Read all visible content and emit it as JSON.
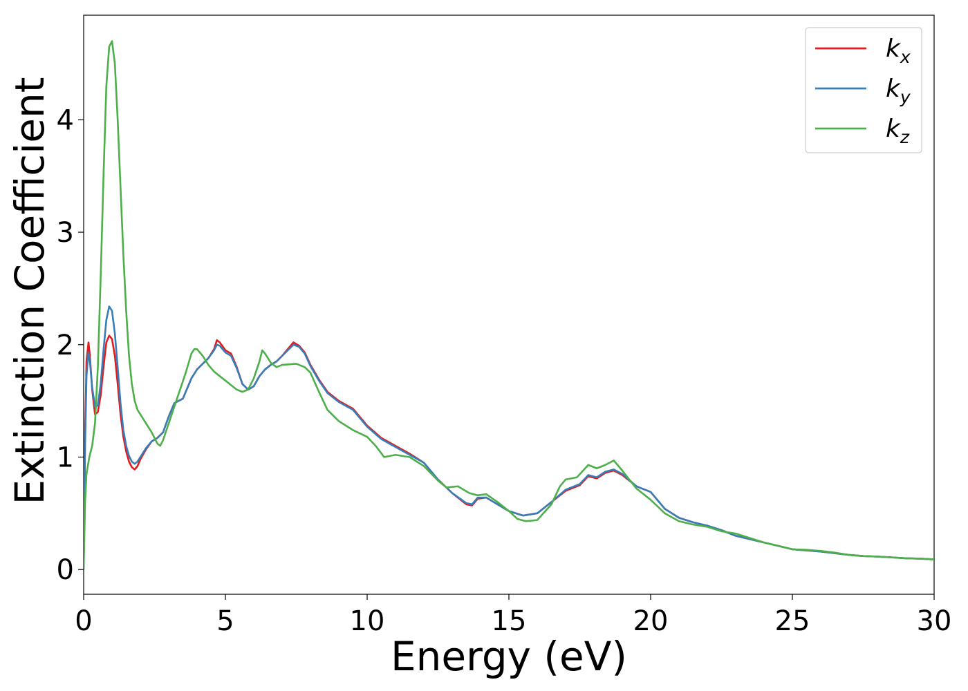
{
  "chart_data": {
    "type": "line",
    "title": "",
    "xlabel": "Energy (eV)",
    "ylabel": "Extinction Coefficient",
    "xlim": [
      0,
      30
    ],
    "ylim": [
      -0.22,
      4.93
    ],
    "xticks": [
      0,
      5,
      10,
      15,
      20,
      25,
      30
    ],
    "yticks": [
      0,
      1,
      2,
      3,
      4
    ],
    "xtick_labels": [
      "0",
      "5",
      "10",
      "15",
      "20",
      "25",
      "30"
    ],
    "ytick_labels": [
      "0",
      "1",
      "2",
      "3",
      "4"
    ],
    "grid": false,
    "legend_position": "top-right",
    "series": [
      {
        "name": "k_x",
        "legend_base": "k",
        "legend_sub": "x",
        "color": "#e41a1c",
        "points": [
          [
            0,
            0
          ],
          [
            0.05,
            1.2
          ],
          [
            0.1,
            1.85
          ],
          [
            0.17,
            2.02
          ],
          [
            0.22,
            1.9
          ],
          [
            0.3,
            1.6
          ],
          [
            0.4,
            1.38
          ],
          [
            0.5,
            1.4
          ],
          [
            0.6,
            1.55
          ],
          [
            0.7,
            1.8
          ],
          [
            0.8,
            2.02
          ],
          [
            0.9,
            2.08
          ],
          [
            1.0,
            2.05
          ],
          [
            1.1,
            1.9
          ],
          [
            1.2,
            1.65
          ],
          [
            1.3,
            1.38
          ],
          [
            1.4,
            1.18
          ],
          [
            1.5,
            1.05
          ],
          [
            1.6,
            0.96
          ],
          [
            1.7,
            0.91
          ],
          [
            1.8,
            0.89
          ],
          [
            1.9,
            0.92
          ],
          [
            2.0,
            0.98
          ],
          [
            2.2,
            1.07
          ],
          [
            2.4,
            1.14
          ],
          [
            2.6,
            1.17
          ],
          [
            2.8,
            1.22
          ],
          [
            3.0,
            1.36
          ],
          [
            3.2,
            1.48
          ],
          [
            3.5,
            1.52
          ],
          [
            3.8,
            1.7
          ],
          [
            4.0,
            1.78
          ],
          [
            4.2,
            1.83
          ],
          [
            4.4,
            1.88
          ],
          [
            4.6,
            1.96
          ],
          [
            4.7,
            2.04
          ],
          [
            4.8,
            2.02
          ],
          [
            5.0,
            1.95
          ],
          [
            5.2,
            1.92
          ],
          [
            5.4,
            1.8
          ],
          [
            5.6,
            1.65
          ],
          [
            5.8,
            1.6
          ],
          [
            6.0,
            1.63
          ],
          [
            6.2,
            1.72
          ],
          [
            6.4,
            1.78
          ],
          [
            6.6,
            1.82
          ],
          [
            6.8,
            1.85
          ],
          [
            7.0,
            1.9
          ],
          [
            7.2,
            1.96
          ],
          [
            7.4,
            2.02
          ],
          [
            7.6,
            1.99
          ],
          [
            7.8,
            1.93
          ],
          [
            8.0,
            1.82
          ],
          [
            8.3,
            1.69
          ],
          [
            8.6,
            1.58
          ],
          [
            9.0,
            1.5
          ],
          [
            9.5,
            1.43
          ],
          [
            10.0,
            1.28
          ],
          [
            10.5,
            1.17
          ],
          [
            11.0,
            1.1
          ],
          [
            11.5,
            1.03
          ],
          [
            12.0,
            0.95
          ],
          [
            12.5,
            0.8
          ],
          [
            13.0,
            0.68
          ],
          [
            13.5,
            0.58
          ],
          [
            13.7,
            0.57
          ],
          [
            13.9,
            0.63
          ],
          [
            14.2,
            0.64
          ],
          [
            14.6,
            0.58
          ],
          [
            15.0,
            0.52
          ],
          [
            15.5,
            0.48
          ],
          [
            16.0,
            0.5
          ],
          [
            16.5,
            0.6
          ],
          [
            17.0,
            0.7
          ],
          [
            17.5,
            0.75
          ],
          [
            17.8,
            0.83
          ],
          [
            18.1,
            0.81
          ],
          [
            18.4,
            0.86
          ],
          [
            18.7,
            0.88
          ],
          [
            19.0,
            0.84
          ],
          [
            19.5,
            0.74
          ],
          [
            20.0,
            0.69
          ],
          [
            20.5,
            0.54
          ],
          [
            21.0,
            0.46
          ],
          [
            21.5,
            0.42
          ],
          [
            22.0,
            0.39
          ],
          [
            22.5,
            0.35
          ],
          [
            23.0,
            0.3
          ],
          [
            23.5,
            0.27
          ],
          [
            24.0,
            0.24
          ],
          [
            24.5,
            0.21
          ],
          [
            25.0,
            0.18
          ],
          [
            25.5,
            0.17
          ],
          [
            26.0,
            0.16
          ],
          [
            26.5,
            0.145
          ],
          [
            27.0,
            0.13
          ],
          [
            27.5,
            0.12
          ],
          [
            28.0,
            0.115
          ],
          [
            28.5,
            0.108
          ],
          [
            29.0,
            0.1
          ],
          [
            29.5,
            0.097
          ],
          [
            30.0,
            0.09
          ]
        ]
      },
      {
        "name": "k_y",
        "legend_base": "k",
        "legend_sub": "y",
        "color": "#377eb8",
        "points": [
          [
            0,
            0
          ],
          [
            0.05,
            1.1
          ],
          [
            0.1,
            1.72
          ],
          [
            0.17,
            1.93
          ],
          [
            0.22,
            1.85
          ],
          [
            0.3,
            1.62
          ],
          [
            0.4,
            1.45
          ],
          [
            0.5,
            1.46
          ],
          [
            0.6,
            1.65
          ],
          [
            0.7,
            1.95
          ],
          [
            0.8,
            2.22
          ],
          [
            0.9,
            2.34
          ],
          [
            1.0,
            2.3
          ],
          [
            1.1,
            2.1
          ],
          [
            1.2,
            1.8
          ],
          [
            1.3,
            1.48
          ],
          [
            1.4,
            1.24
          ],
          [
            1.5,
            1.1
          ],
          [
            1.6,
            1.01
          ],
          [
            1.7,
            0.96
          ],
          [
            1.8,
            0.94
          ],
          [
            1.9,
            0.96
          ],
          [
            2.0,
            1.0
          ],
          [
            2.2,
            1.08
          ],
          [
            2.4,
            1.14
          ],
          [
            2.6,
            1.17
          ],
          [
            2.8,
            1.22
          ],
          [
            3.0,
            1.36
          ],
          [
            3.2,
            1.48
          ],
          [
            3.5,
            1.52
          ],
          [
            3.8,
            1.7
          ],
          [
            4.0,
            1.78
          ],
          [
            4.2,
            1.83
          ],
          [
            4.4,
            1.88
          ],
          [
            4.6,
            1.95
          ],
          [
            4.7,
            2.0
          ],
          [
            4.8,
            1.99
          ],
          [
            5.0,
            1.93
          ],
          [
            5.2,
            1.9
          ],
          [
            5.4,
            1.79
          ],
          [
            5.6,
            1.65
          ],
          [
            5.8,
            1.6
          ],
          [
            6.0,
            1.63
          ],
          [
            6.2,
            1.72
          ],
          [
            6.4,
            1.78
          ],
          [
            6.6,
            1.82
          ],
          [
            6.8,
            1.85
          ],
          [
            7.0,
            1.9
          ],
          [
            7.2,
            1.95
          ],
          [
            7.4,
            2.0
          ],
          [
            7.6,
            1.98
          ],
          [
            7.8,
            1.92
          ],
          [
            8.0,
            1.81
          ],
          [
            8.3,
            1.68
          ],
          [
            8.6,
            1.57
          ],
          [
            9.0,
            1.49
          ],
          [
            9.5,
            1.42
          ],
          [
            10.0,
            1.27
          ],
          [
            10.5,
            1.16
          ],
          [
            11.0,
            1.09
          ],
          [
            11.5,
            1.02
          ],
          [
            12.0,
            0.95
          ],
          [
            12.5,
            0.8
          ],
          [
            13.0,
            0.68
          ],
          [
            13.5,
            0.59
          ],
          [
            13.7,
            0.58
          ],
          [
            13.9,
            0.64
          ],
          [
            14.2,
            0.64
          ],
          [
            14.6,
            0.58
          ],
          [
            15.0,
            0.52
          ],
          [
            15.5,
            0.48
          ],
          [
            16.0,
            0.5
          ],
          [
            16.5,
            0.6
          ],
          [
            17.0,
            0.71
          ],
          [
            17.5,
            0.76
          ],
          [
            17.8,
            0.84
          ],
          [
            18.1,
            0.82
          ],
          [
            18.4,
            0.87
          ],
          [
            18.7,
            0.89
          ],
          [
            19.0,
            0.85
          ],
          [
            19.5,
            0.74
          ],
          [
            20.0,
            0.69
          ],
          [
            20.5,
            0.54
          ],
          [
            21.0,
            0.46
          ],
          [
            21.5,
            0.42
          ],
          [
            22.0,
            0.39
          ],
          [
            22.5,
            0.35
          ],
          [
            23.0,
            0.3
          ],
          [
            23.5,
            0.27
          ],
          [
            24.0,
            0.24
          ],
          [
            24.5,
            0.21
          ],
          [
            25.0,
            0.18
          ],
          [
            25.5,
            0.17
          ],
          [
            26.0,
            0.16
          ],
          [
            26.5,
            0.145
          ],
          [
            27.0,
            0.13
          ],
          [
            27.5,
            0.12
          ],
          [
            28.0,
            0.115
          ],
          [
            28.5,
            0.108
          ],
          [
            29.0,
            0.1
          ],
          [
            29.5,
            0.097
          ],
          [
            30.0,
            0.09
          ]
        ]
      },
      {
        "name": "k_z",
        "legend_base": "k",
        "legend_sub": "z",
        "color": "#4daf4a",
        "points": [
          [
            0,
            0
          ],
          [
            0.05,
            0.6
          ],
          [
            0.1,
            0.85
          ],
          [
            0.2,
            1.0
          ],
          [
            0.3,
            1.1
          ],
          [
            0.4,
            1.3
          ],
          [
            0.5,
            1.8
          ],
          [
            0.6,
            2.6
          ],
          [
            0.7,
            3.5
          ],
          [
            0.8,
            4.3
          ],
          [
            0.9,
            4.65
          ],
          [
            1.0,
            4.7
          ],
          [
            1.1,
            4.5
          ],
          [
            1.2,
            4.0
          ],
          [
            1.3,
            3.4
          ],
          [
            1.4,
            2.8
          ],
          [
            1.5,
            2.3
          ],
          [
            1.6,
            1.9
          ],
          [
            1.7,
            1.65
          ],
          [
            1.8,
            1.5
          ],
          [
            1.9,
            1.42
          ],
          [
            2.0,
            1.38
          ],
          [
            2.2,
            1.3
          ],
          [
            2.4,
            1.22
          ],
          [
            2.6,
            1.12
          ],
          [
            2.7,
            1.1
          ],
          [
            2.8,
            1.15
          ],
          [
            3.0,
            1.3
          ],
          [
            3.2,
            1.45
          ],
          [
            3.4,
            1.6
          ],
          [
            3.6,
            1.75
          ],
          [
            3.8,
            1.92
          ],
          [
            3.9,
            1.96
          ],
          [
            4.0,
            1.96
          ],
          [
            4.2,
            1.9
          ],
          [
            4.4,
            1.82
          ],
          [
            4.6,
            1.76
          ],
          [
            4.8,
            1.72
          ],
          [
            5.0,
            1.68
          ],
          [
            5.2,
            1.64
          ],
          [
            5.4,
            1.6
          ],
          [
            5.6,
            1.58
          ],
          [
            5.8,
            1.6
          ],
          [
            6.0,
            1.7
          ],
          [
            6.2,
            1.85
          ],
          [
            6.3,
            1.95
          ],
          [
            6.4,
            1.92
          ],
          [
            6.6,
            1.84
          ],
          [
            6.8,
            1.8
          ],
          [
            7.0,
            1.82
          ],
          [
            7.5,
            1.83
          ],
          [
            7.8,
            1.8
          ],
          [
            8.0,
            1.75
          ],
          [
            8.3,
            1.58
          ],
          [
            8.6,
            1.42
          ],
          [
            9.0,
            1.32
          ],
          [
            9.5,
            1.24
          ],
          [
            10.0,
            1.18
          ],
          [
            10.3,
            1.1
          ],
          [
            10.6,
            1.0
          ],
          [
            11.0,
            1.02
          ],
          [
            11.5,
            1.0
          ],
          [
            12.0,
            0.92
          ],
          [
            12.5,
            0.79
          ],
          [
            12.8,
            0.73
          ],
          [
            13.2,
            0.74
          ],
          [
            13.6,
            0.68
          ],
          [
            13.9,
            0.66
          ],
          [
            14.2,
            0.67
          ],
          [
            14.6,
            0.6
          ],
          [
            15.0,
            0.52
          ],
          [
            15.3,
            0.45
          ],
          [
            15.6,
            0.43
          ],
          [
            16.0,
            0.44
          ],
          [
            16.5,
            0.58
          ],
          [
            16.8,
            0.74
          ],
          [
            17.0,
            0.8
          ],
          [
            17.4,
            0.82
          ],
          [
            17.8,
            0.93
          ],
          [
            18.1,
            0.9
          ],
          [
            18.4,
            0.93
          ],
          [
            18.7,
            0.97
          ],
          [
            19.0,
            0.88
          ],
          [
            19.5,
            0.72
          ],
          [
            20.0,
            0.62
          ],
          [
            20.5,
            0.5
          ],
          [
            21.0,
            0.43
          ],
          [
            21.5,
            0.4
          ],
          [
            22.0,
            0.38
          ],
          [
            22.5,
            0.34
          ],
          [
            23.0,
            0.32
          ],
          [
            23.5,
            0.28
          ],
          [
            24.0,
            0.24
          ],
          [
            24.5,
            0.21
          ],
          [
            25.0,
            0.18
          ],
          [
            25.5,
            0.175
          ],
          [
            26.0,
            0.165
          ],
          [
            26.5,
            0.15
          ],
          [
            27.0,
            0.13
          ],
          [
            27.5,
            0.12
          ],
          [
            28.0,
            0.115
          ],
          [
            28.5,
            0.108
          ],
          [
            29.0,
            0.1
          ],
          [
            29.5,
            0.097
          ],
          [
            30.0,
            0.09
          ]
        ]
      }
    ]
  }
}
